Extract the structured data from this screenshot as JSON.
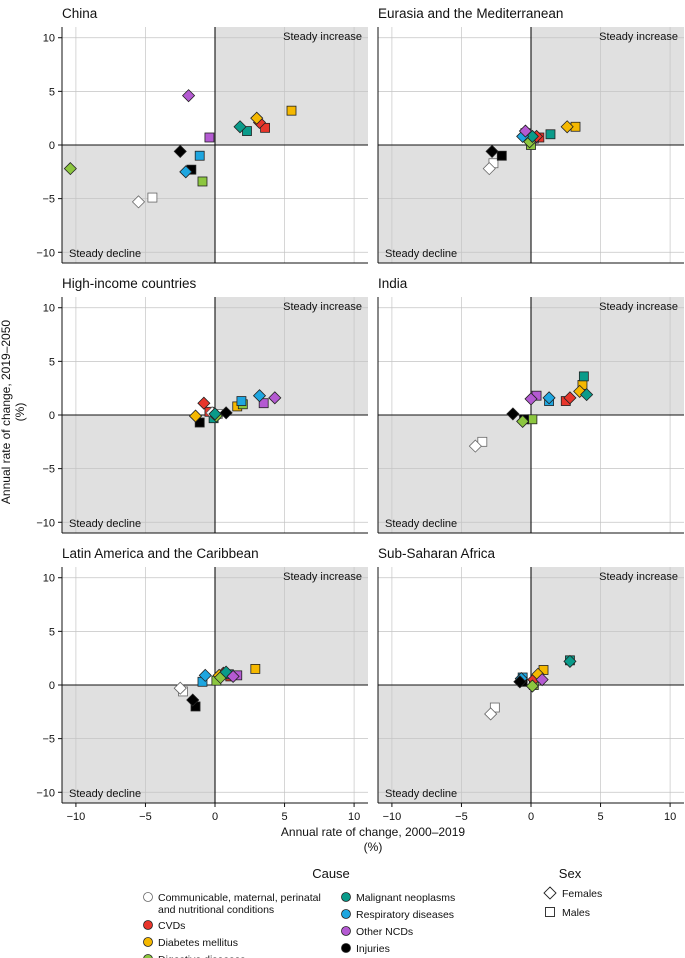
{
  "chart_data": {
    "type": "scatter",
    "xlabel_line1": "Annual rate of change, 2000–2019",
    "xlabel_line2": "(%)",
    "ylabel_line1": "Annual rate of change, 2019–2050",
    "ylabel_line2": "(%)",
    "xlim": [
      -11,
      11
    ],
    "ylim": [
      -11,
      11
    ],
    "ticks": [
      -10,
      -5,
      0,
      5,
      10
    ],
    "tick_labels": [
      "−10",
      "−5",
      "0",
      "5",
      "10"
    ],
    "quadrant_labels": {
      "increase": "Steady increase",
      "decline": "Steady decline"
    },
    "causes": [
      {
        "key": "comm",
        "label_lines": [
          "Communicable, maternal, perinatal",
          "and nutritional conditions"
        ],
        "color": "#ffffff"
      },
      {
        "key": "cvd",
        "label_lines": [
          "CVDs"
        ],
        "color": "#e8352b"
      },
      {
        "key": "diab",
        "label_lines": [
          "Diabetes mellitus"
        ],
        "color": "#f5b800"
      },
      {
        "key": "dig",
        "label_lines": [
          "Digestive diseases"
        ],
        "color": "#8cc63f"
      },
      {
        "key": "neo",
        "label_lines": [
          "Malignant neoplasms"
        ],
        "color": "#0a9b8a"
      },
      {
        "key": "resp",
        "label_lines": [
          "Respiratory diseases"
        ],
        "color": "#1ea6e0"
      },
      {
        "key": "ncd",
        "label_lines": [
          "Other NCDs"
        ],
        "color": "#b45ad2"
      },
      {
        "key": "inj",
        "label_lines": [
          "Injuries"
        ],
        "color": "#000000"
      }
    ],
    "legend": {
      "cause_title": "Cause",
      "sex_title": "Sex",
      "sexes": [
        {
          "key": "F",
          "label": "Females"
        },
        {
          "key": "M",
          "label": "Males"
        }
      ]
    },
    "panels": [
      {
        "title": "China",
        "points": [
          {
            "cause": "comm",
            "sex": "F",
            "x": -5.5,
            "y": -5.3
          },
          {
            "cause": "comm",
            "sex": "M",
            "x": -4.5,
            "y": -4.9
          },
          {
            "cause": "cvd",
            "sex": "F",
            "x": 3.2,
            "y": 2.1
          },
          {
            "cause": "cvd",
            "sex": "M",
            "x": 3.6,
            "y": 1.6
          },
          {
            "cause": "diab",
            "sex": "F",
            "x": 3.0,
            "y": 2.5
          },
          {
            "cause": "diab",
            "sex": "M",
            "x": 5.5,
            "y": 3.2
          },
          {
            "cause": "dig",
            "sex": "F",
            "x": -10.4,
            "y": -2.2
          },
          {
            "cause": "dig",
            "sex": "M",
            "x": -0.9,
            "y": -3.4
          },
          {
            "cause": "neo",
            "sex": "F",
            "x": 1.8,
            "y": 1.7
          },
          {
            "cause": "neo",
            "sex": "M",
            "x": 2.3,
            "y": 1.3
          },
          {
            "cause": "resp",
            "sex": "F",
            "x": -2.1,
            "y": -2.5
          },
          {
            "cause": "resp",
            "sex": "M",
            "x": -1.1,
            "y": -1.0
          },
          {
            "cause": "ncd",
            "sex": "F",
            "x": -1.9,
            "y": 4.6
          },
          {
            "cause": "ncd",
            "sex": "M",
            "x": -0.4,
            "y": 0.7
          },
          {
            "cause": "inj",
            "sex": "F",
            "x": -2.5,
            "y": -0.6
          },
          {
            "cause": "inj",
            "sex": "M",
            "x": -1.7,
            "y": -2.3
          }
        ]
      },
      {
        "title": "Eurasia and the Mediterranean",
        "points": [
          {
            "cause": "comm",
            "sex": "F",
            "x": -3.0,
            "y": -2.2
          },
          {
            "cause": "comm",
            "sex": "M",
            "x": -2.7,
            "y": -1.7
          },
          {
            "cause": "cvd",
            "sex": "F",
            "x": 0.4,
            "y": 0.8
          },
          {
            "cause": "cvd",
            "sex": "M",
            "x": 0.6,
            "y": 0.7
          },
          {
            "cause": "diab",
            "sex": "F",
            "x": 2.6,
            "y": 1.7
          },
          {
            "cause": "diab",
            "sex": "M",
            "x": 3.2,
            "y": 1.7
          },
          {
            "cause": "dig",
            "sex": "F",
            "x": -0.1,
            "y": 0.3
          },
          {
            "cause": "dig",
            "sex": "M",
            "x": 0.0,
            "y": 0.0
          },
          {
            "cause": "neo",
            "sex": "F",
            "x": 0.1,
            "y": 0.8
          },
          {
            "cause": "neo",
            "sex": "M",
            "x": 1.4,
            "y": 1.0
          },
          {
            "cause": "resp",
            "sex": "F",
            "x": -0.6,
            "y": 0.8
          },
          {
            "cause": "resp",
            "sex": "M",
            "x": -0.4,
            "y": 1.1
          },
          {
            "cause": "ncd",
            "sex": "F",
            "x": -0.4,
            "y": 1.3
          },
          {
            "cause": "ncd",
            "sex": "M",
            "x": 0.2,
            "y": 0.6
          },
          {
            "cause": "inj",
            "sex": "F",
            "x": -2.8,
            "y": -0.6
          },
          {
            "cause": "inj",
            "sex": "M",
            "x": -2.1,
            "y": -1.0
          }
        ]
      },
      {
        "title": "High-income countries",
        "points": [
          {
            "cause": "comm",
            "sex": "F",
            "x": -0.2,
            "y": 0.2
          },
          {
            "cause": "comm",
            "sex": "M",
            "x": 0.2,
            "y": 0.1
          },
          {
            "cause": "cvd",
            "sex": "F",
            "x": -0.8,
            "y": 1.1
          },
          {
            "cause": "cvd",
            "sex": "M",
            "x": -0.4,
            "y": 0.3
          },
          {
            "cause": "diab",
            "sex": "F",
            "x": -1.4,
            "y": -0.1
          },
          {
            "cause": "diab",
            "sex": "M",
            "x": 1.6,
            "y": 0.8
          },
          {
            "cause": "dig",
            "sex": "F",
            "x": 0.1,
            "y": -0.1
          },
          {
            "cause": "dig",
            "sex": "M",
            "x": 2.0,
            "y": 1.0
          },
          {
            "cause": "neo",
            "sex": "F",
            "x": 0.0,
            "y": 0.1
          },
          {
            "cause": "neo",
            "sex": "M",
            "x": -0.1,
            "y": -0.3
          },
          {
            "cause": "resp",
            "sex": "F",
            "x": 3.2,
            "y": 1.8
          },
          {
            "cause": "resp",
            "sex": "M",
            "x": 1.9,
            "y": 1.3
          },
          {
            "cause": "ncd",
            "sex": "F",
            "x": 4.3,
            "y": 1.6
          },
          {
            "cause": "ncd",
            "sex": "M",
            "x": 3.5,
            "y": 1.1
          },
          {
            "cause": "inj",
            "sex": "F",
            "x": 0.8,
            "y": 0.2
          },
          {
            "cause": "inj",
            "sex": "M",
            "x": -1.1,
            "y": -0.7
          }
        ]
      },
      {
        "title": "India",
        "points": [
          {
            "cause": "comm",
            "sex": "F",
            "x": -4.0,
            "y": -2.9
          },
          {
            "cause": "comm",
            "sex": "M",
            "x": -3.5,
            "y": -2.5
          },
          {
            "cause": "cvd",
            "sex": "F",
            "x": 2.8,
            "y": 1.6
          },
          {
            "cause": "cvd",
            "sex": "M",
            "x": 2.5,
            "y": 1.3
          },
          {
            "cause": "diab",
            "sex": "F",
            "x": 3.5,
            "y": 2.2
          },
          {
            "cause": "diab",
            "sex": "M",
            "x": 3.7,
            "y": 2.8
          },
          {
            "cause": "dig",
            "sex": "F",
            "x": -0.6,
            "y": -0.6
          },
          {
            "cause": "dig",
            "sex": "M",
            "x": 0.1,
            "y": -0.4
          },
          {
            "cause": "neo",
            "sex": "F",
            "x": 4.0,
            "y": 1.9
          },
          {
            "cause": "neo",
            "sex": "M",
            "x": 3.8,
            "y": 3.6
          },
          {
            "cause": "resp",
            "sex": "F",
            "x": 1.3,
            "y": 1.6
          },
          {
            "cause": "resp",
            "sex": "M",
            "x": 1.3,
            "y": 1.3
          },
          {
            "cause": "ncd",
            "sex": "F",
            "x": 0.0,
            "y": 1.5
          },
          {
            "cause": "ncd",
            "sex": "M",
            "x": 0.4,
            "y": 1.8
          },
          {
            "cause": "inj",
            "sex": "F",
            "x": -1.3,
            "y": 0.1
          },
          {
            "cause": "inj",
            "sex": "M",
            "x": -0.5,
            "y": -0.4
          }
        ]
      },
      {
        "title": "Latin America and the Caribbean",
        "points": [
          {
            "cause": "comm",
            "sex": "F",
            "x": -2.5,
            "y": -0.3
          },
          {
            "cause": "comm",
            "sex": "M",
            "x": -2.3,
            "y": -0.6
          },
          {
            "cause": "cvd",
            "sex": "F",
            "x": 0.6,
            "y": 1.1
          },
          {
            "cause": "cvd",
            "sex": "M",
            "x": 1.1,
            "y": 0.8
          },
          {
            "cause": "diab",
            "sex": "F",
            "x": 0.3,
            "y": 0.9
          },
          {
            "cause": "diab",
            "sex": "M",
            "x": 2.9,
            "y": 1.5
          },
          {
            "cause": "dig",
            "sex": "F",
            "x": 0.4,
            "y": 0.7
          },
          {
            "cause": "dig",
            "sex": "M",
            "x": 0.1,
            "y": 0.4
          },
          {
            "cause": "neo",
            "sex": "F",
            "x": 0.8,
            "y": 1.2
          },
          {
            "cause": "neo",
            "sex": "M",
            "x": 1.0,
            "y": 1.0
          },
          {
            "cause": "resp",
            "sex": "F",
            "x": -0.7,
            "y": 0.9
          },
          {
            "cause": "resp",
            "sex": "M",
            "x": -0.9,
            "y": 0.3
          },
          {
            "cause": "ncd",
            "sex": "F",
            "x": 1.3,
            "y": 0.8
          },
          {
            "cause": "ncd",
            "sex": "M",
            "x": 1.6,
            "y": 0.9
          },
          {
            "cause": "inj",
            "sex": "F",
            "x": -1.6,
            "y": -1.4
          },
          {
            "cause": "inj",
            "sex": "M",
            "x": -1.4,
            "y": -2.0
          }
        ]
      },
      {
        "title": "Sub-Saharan Africa",
        "points": [
          {
            "cause": "comm",
            "sex": "F",
            "x": -2.9,
            "y": -2.7
          },
          {
            "cause": "comm",
            "sex": "M",
            "x": -2.6,
            "y": -2.1
          },
          {
            "cause": "cvd",
            "sex": "F",
            "x": 0.2,
            "y": 0.5
          },
          {
            "cause": "cvd",
            "sex": "M",
            "x": 0.5,
            "y": 0.7
          },
          {
            "cause": "diab",
            "sex": "F",
            "x": 0.5,
            "y": 1.0
          },
          {
            "cause": "diab",
            "sex": "M",
            "x": 0.9,
            "y": 1.4
          },
          {
            "cause": "dig",
            "sex": "F",
            "x": 0.1,
            "y": -0.1
          },
          {
            "cause": "dig",
            "sex": "M",
            "x": 0.2,
            "y": 0.0
          },
          {
            "cause": "neo",
            "sex": "F",
            "x": 2.8,
            "y": 2.2
          },
          {
            "cause": "neo",
            "sex": "M",
            "x": 2.8,
            "y": 2.3
          },
          {
            "cause": "resp",
            "sex": "F",
            "x": -0.7,
            "y": 0.6
          },
          {
            "cause": "resp",
            "sex": "M",
            "x": -0.6,
            "y": 0.7
          },
          {
            "cause": "ncd",
            "sex": "F",
            "x": 0.8,
            "y": 0.5
          },
          {
            "cause": "ncd",
            "sex": "M",
            "x": 0.5,
            "y": 0.7
          },
          {
            "cause": "inj",
            "sex": "F",
            "x": -0.8,
            "y": 0.3
          },
          {
            "cause": "inj",
            "sex": "M",
            "x": -0.6,
            "y": 0.3
          }
        ]
      }
    ]
  }
}
